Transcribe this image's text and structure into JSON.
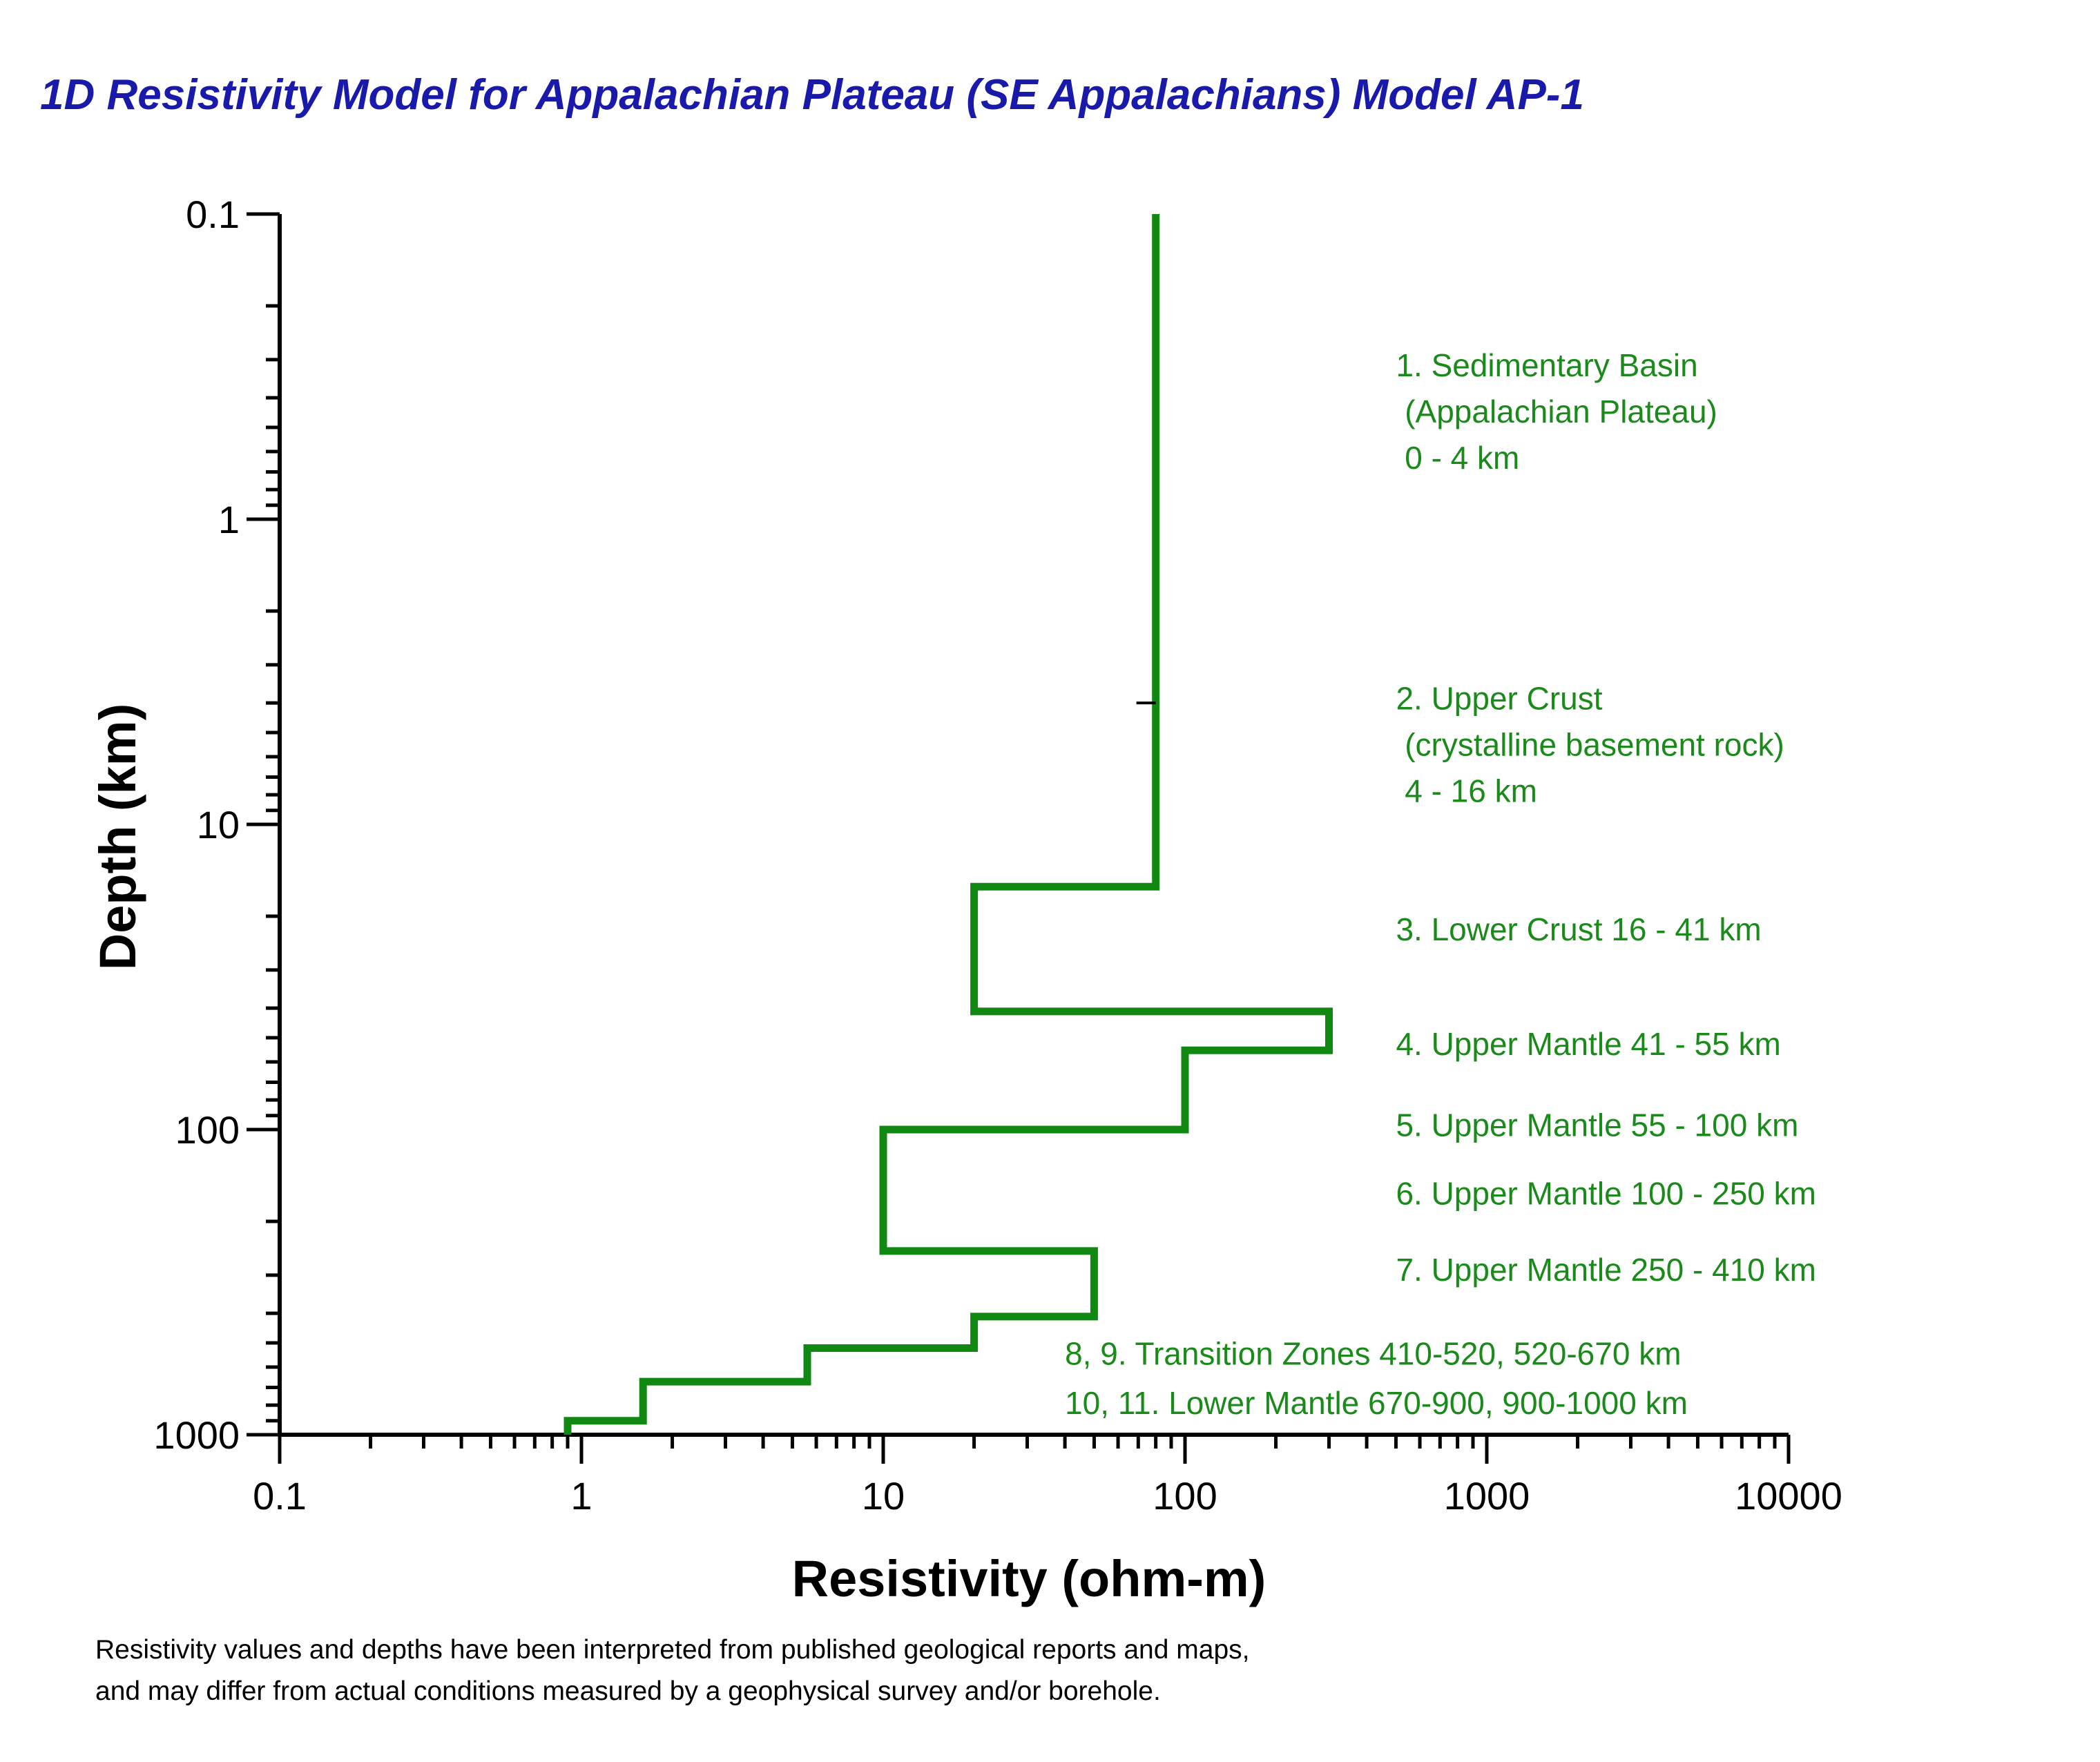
{
  "chart_data": {
    "type": "line",
    "title": "1D Resistivity Model for Appalachian Plateau (SE Appalachians)  Model AP-1",
    "xlabel": "Resistivity (ohm-m)",
    "ylabel": "Depth (km)",
    "x_scale": "log",
    "y_scale": "log",
    "y_inverted": true,
    "xlim": [
      0.1,
      10000
    ],
    "ylim": [
      0.1,
      1000
    ],
    "x_tick_labels": [
      "0.1",
      "1",
      "10",
      "100",
      "1000",
      "10000"
    ],
    "y_tick_labels": [
      "0.1",
      "1",
      "10",
      "100",
      "1000"
    ],
    "series": [
      {
        "color": "#118811",
        "x": [
          80,
          80,
          80,
          20,
          20,
          300,
          300,
          100,
          100,
          10,
          10,
          50,
          50,
          20,
          20,
          5.6,
          5.6,
          1.6,
          1.6,
          0.9,
          0.9
        ],
        "y": [
          0.1,
          4,
          16,
          16,
          41,
          41,
          55,
          55,
          100,
          100,
          250,
          250,
          410,
          410,
          520,
          520,
          670,
          670,
          900,
          900,
          1000
        ]
      }
    ],
    "marker_depth": 4,
    "annotations": [
      {
        "lines": [
          "1. Sedimentary Basin",
          "   (Appalachian Plateau)",
          "    0 - 4 km"
        ],
        "x": 500,
        "y": 0.34
      },
      {
        "lines": [
          "2. Upper Crust",
          "    (crystalline basement rock)",
          "    4 - 16 km"
        ],
        "x": 500,
        "y": 4.2
      },
      {
        "lines": [
          "3. Lower Crust 16 - 41 km"
        ],
        "x": 500,
        "y": 24
      },
      {
        "lines": [
          "4. Upper Mantle 41 - 55 km"
        ],
        "x": 500,
        "y": 57
      },
      {
        "lines": [
          "5. Upper Mantle 55 - 100 km"
        ],
        "x": 500,
        "y": 105
      },
      {
        "lines": [
          "6. Upper Mantle  100 - 250 km"
        ],
        "x": 500,
        "y": 176
      },
      {
        "lines": [
          "7. Upper Mantle  250 - 410 km"
        ],
        "x": 500,
        "y": 313
      },
      {
        "lines": [
          "8, 9. Transition Zones 410-520, 520-670 km"
        ],
        "x": 40,
        "y": 590
      },
      {
        "lines": [
          "10, 11. Lower Mantle 670-900, 900-1000 km"
        ],
        "x": 40,
        "y": 856
      }
    ],
    "footnote": [
      "Resistivity values and depths have been interpreted from published geological reports and maps,",
      " and may differ from actual conditions measured by a geophysical survey and/or borehole."
    ],
    "grid": false,
    "legend": "none"
  }
}
